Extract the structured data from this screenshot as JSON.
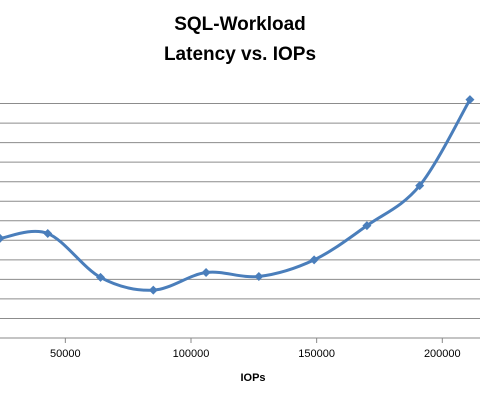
{
  "chart_data": {
    "type": "line",
    "title_lines": [
      "SQL-Workload",
      "Latency vs. IOPs"
    ],
    "xlabel": "IOPs",
    "ylabel": "",
    "x_ticks": [
      50000,
      100000,
      150000,
      200000
    ],
    "xlim": [
      24000,
      215000
    ],
    "ylim": [
      0,
      13
    ],
    "gridlines": [
      1,
      2,
      3,
      4,
      5,
      6,
      7,
      8,
      9,
      10,
      11,
      12
    ],
    "grid": true,
    "legend": "none",
    "line_color": "#4a7ebb",
    "series": [
      {
        "x": [
          24000,
          43000,
          64000,
          85000,
          106000,
          127000,
          149000,
          170000,
          191000,
          211000
        ],
        "values": [
          5.1,
          5.35,
          3.1,
          2.45,
          3.35,
          3.15,
          4.0,
          5.75,
          7.8,
          12.2
        ]
      }
    ]
  }
}
